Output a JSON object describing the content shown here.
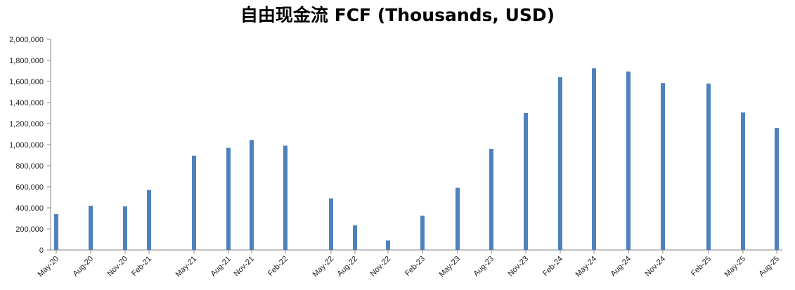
{
  "chart_data": {
    "type": "bar",
    "title": "自由现金流 FCF (Thousands, USD)",
    "xlabel": "",
    "ylabel": "",
    "ylim": [
      0,
      2000000
    ],
    "yticks": [
      "0",
      "200,000",
      "400,000",
      "600,000",
      "800,000",
      "1,000,000",
      "1,200,000",
      "1,400,000",
      "1,600,000",
      "1,800,000",
      "2,000,000"
    ],
    "legend": "none",
    "grid": false,
    "color": "#4F81BD",
    "categories": [
      "May-20",
      "Aug-20",
      "Nov-20",
      "Feb-21",
      "May-21",
      "Aug-21",
      "Nov-21",
      "Feb-22",
      "May-22",
      "Aug-22",
      "Nov-22",
      "Feb-23",
      "May-23",
      "Aug-23",
      "Nov-23",
      "Feb-24",
      "May-24",
      "Aug-24",
      "Nov-24",
      "Feb-25",
      "May-25",
      "Aug-25"
    ],
    "values": [
      340000,
      420000,
      415000,
      570000,
      895000,
      970000,
      1045000,
      990000,
      490000,
      235000,
      90000,
      325000,
      590000,
      960000,
      1300000,
      1640000,
      1725000,
      1695000,
      1585000,
      1580000,
      1305000,
      1160000
    ]
  }
}
